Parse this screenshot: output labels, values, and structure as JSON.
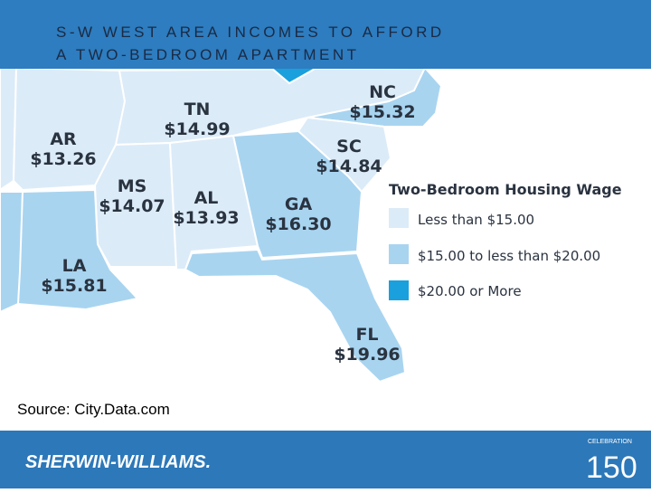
{
  "header": {
    "title_lines": [
      "S-W WEST AREA INCOMES TO AFFORD",
      "A TWO-BEDROOM APARTMENT"
    ]
  },
  "map": {
    "states": [
      {
        "label": "TN",
        "wage": "$14.99"
      },
      {
        "label": "NC",
        "wage": "$15.32"
      },
      {
        "label": "AR",
        "wage": "$13.26"
      },
      {
        "label": "SC",
        "wage": "$14.84"
      },
      {
        "label": "MS",
        "wage": "$14.07"
      },
      {
        "label": "AL",
        "wage": "$13.93"
      },
      {
        "label": "GA",
        "wage": "$16.30"
      },
      {
        "label": "LA",
        "wage": "$15.81"
      },
      {
        "label": "FL",
        "wage": "$19.96"
      }
    ]
  },
  "legend": {
    "title": "Two-Bedroom Housing Wage",
    "items": [
      "Less than $15.00",
      "$15.00 to less than $20.00",
      "$20.00 or More"
    ]
  },
  "source": "Source: City.Data.com",
  "footer": {
    "brand": "SHERWIN-WILLIAMS.",
    "badge_top": "CELEBRATION",
    "badge_number": "150"
  }
}
